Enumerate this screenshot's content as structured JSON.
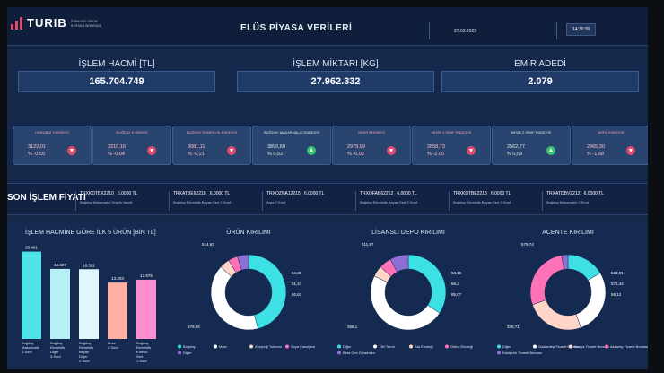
{
  "header": {
    "brand": "TURIB",
    "brand_sub": "TÜRKİYE ÜRÜN İHTİSAS BORSASI",
    "title": "ELÜS PİYASA VERİLERİ",
    "date": "27.03.2023",
    "time": "14:30:30"
  },
  "stats": [
    {
      "label": "İŞLEM HACMİ [TL]",
      "value": "165.704.749"
    },
    {
      "label": "İŞLEM MİKTARI [KG]",
      "value": "27.962.332"
    },
    {
      "label": "EMİR ADEDİ",
      "value": "2.079"
    }
  ],
  "indices": [
    {
      "name": "HUBUBAT ENDEKSİ",
      "value": "3122,01",
      "change": "% -0,59",
      "dir": "down"
    },
    {
      "name": "BUĞDAY ENDEKSİ",
      "value": "3210,16",
      "change": "% -0,64",
      "dir": "down"
    },
    {
      "name": "BUĞDAY EKMEKLİK ENDEKSİ",
      "value": "3081,11",
      "change": "% -0,21",
      "dir": "down"
    },
    {
      "name": "BUĞDAY MAKARNALIK ENDEKSİ",
      "value": "3890,60",
      "change": "% 0,52",
      "dir": "up"
    },
    {
      "name": "MISIR ENDEKSİ",
      "value": "2979,99",
      "change": "% -0,02",
      "dir": "down"
    },
    {
      "name": "MISIR 1.SINIF ENDEKSİ",
      "value": "2858,73",
      "change": "% -2,05",
      "dir": "down"
    },
    {
      "name": "MISIR 2.SINIF ENDEKSİ",
      "value": "2562,77",
      "change": "% 0,59",
      "dir": "up"
    },
    {
      "name": "ARPA ENDEKSİ",
      "value": "2965,30",
      "change": "% -1,68",
      "dir": "down"
    }
  ],
  "ticker": {
    "heading": "SON İŞLEM FİYATI",
    "items": [
      {
        "code": "TRXKDTBX2210",
        "price": "6,0000 TL",
        "desc": "Buğday Makarnalık Düşük Vasıflı"
      },
      {
        "code": "TRXATBE62218",
        "price": "6,0000 TL",
        "desc": "Buğday Ekmeklik Beyaz Sert 1.Sınıf"
      },
      {
        "code": "TRXOZNA12215",
        "price": "6,0000 TL",
        "desc": "Arpa 2.Sınıf"
      },
      {
        "code": "TRXOFAB62212",
        "price": "6,0000 TL",
        "desc": "Buğday Ekmeklik Beyaz Sert 2.Sınıf"
      },
      {
        "code": "TRXKDTBE2218",
        "price": "6,0000 TL",
        "desc": "Buğday Ekmeklik Beyaz Sert 1.Sınıf"
      },
      {
        "code": "TRXATDBV2212",
        "price": "6,0000 TL",
        "desc": "Buğday Makarnalık 2.Sınıf"
      }
    ]
  },
  "charts": {
    "bar_title": "İŞLEM HACMİNE GÖRE İLK 5 ÜRÜN [BİN TL]",
    "product_title": "ÜRÜN KIRILIMI",
    "depot_title": "LİSANSLI DEPO KIRILIMI",
    "agency_title": "ACENTE KIRILIMI"
  },
  "chart_data": [
    {
      "type": "bar",
      "title": "İŞLEM HACMİNE GÖRE İLK 5 ÜRÜN [BİN TL]",
      "categories": [
        "Buğday Makarnalık 3.Sınıf",
        "Buğday Ekmeklik Diğer 3.Sınıf",
        "Buğday Ekmeklik Beyaz Diğer 2.Sınıf",
        "Mısır 2.Sınıf",
        "Buğday Ekmeklik Kırmızı Sert 1.Sınıf"
      ],
      "values": [
        20.461,
        16.397,
        16.322,
        13.203,
        13.875
      ],
      "value_labels": [
        "20.461",
        "16.397",
        "16.322",
        "13.203",
        "13.875"
      ],
      "colors": [
        "#4de3e8",
        "#b6f0f4",
        "#dff6fb",
        "#ffb0a4",
        "#ff8fd0"
      ]
    },
    {
      "type": "pie",
      "title": "ÜRÜN KIRILIMI",
      "slice_labels": [
        "579,96",
        "514,62",
        "54,38",
        "51,47",
        "60,63"
      ],
      "values": [
        579.96,
        514.62,
        54.38,
        51.47,
        60.63
      ],
      "colors": [
        "#3de0e4",
        "#ffffff",
        "#ffd5c8",
        "#ff72b7",
        "#8e6fd6"
      ],
      "legend": [
        "Buğday",
        "Mısır",
        "Ayçiçeği Tohumu",
        "Soya Fasulyesi",
        "Diğer"
      ]
    },
    {
      "type": "pie",
      "title": "LİSANSLI DEPO KIRILIMI",
      "slice_labels": [
        "368,1",
        "511,97",
        "50,16",
        "56,3",
        "85,07"
      ],
      "values": [
        368.1,
        511.97,
        50.16,
        56.3,
        85.07
      ],
      "colors": [
        "#3de0e4",
        "#ffffff",
        "#ffd5c8",
        "#ff72b7",
        "#8e6fd6"
      ],
      "legend": [
        "Diğer",
        "TİM Tarım",
        "Ata Ekmeği",
        "Güleç Ekmeği",
        "Beta Gen Diyarbakır"
      ]
    },
    {
      "type": "pie",
      "title": "ACENTE KIRILIMI",
      "slice_labels": [
        "339,71",
        "579,74",
        "522,01",
        "572,42",
        "56,12"
      ],
      "values": [
        339.71,
        579.74,
        522.01,
        572.42,
        56.12
      ],
      "colors": [
        "#3de0e4",
        "#ffffff",
        "#ffd5c8",
        "#ff72b7",
        "#8e6fd6"
      ],
      "legend": [
        "Diğer",
        "Gaziantep Ticaret Borsası",
        "Konya Ticaret Borsası",
        "Aksaray Ticaret Borsası",
        "Eskişehir Ticaret Borsası"
      ]
    }
  ]
}
